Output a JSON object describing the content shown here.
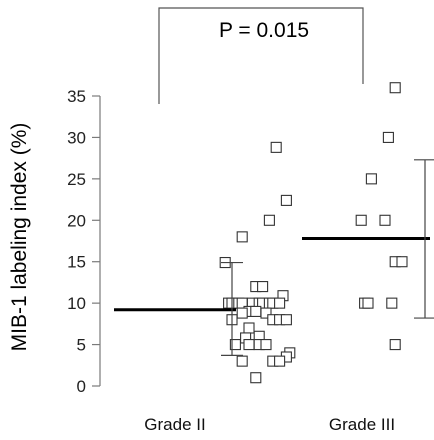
{
  "chart_data": {
    "type": "scatter",
    "title": "",
    "ylabel": "MIB-1 labeling index (%)",
    "xlabel": "",
    "ylim": [
      0,
      35
    ],
    "yticks": [
      0,
      5,
      10,
      15,
      20,
      25,
      30,
      35
    ],
    "categories": [
      "Grade II",
      "Grade III"
    ],
    "grid": false,
    "annotations": [
      {
        "text": "P = 0.015",
        "type": "bracket",
        "between": [
          "Grade II",
          "Grade III"
        ]
      }
    ],
    "series": [
      {
        "category": "Grade II",
        "mean": 9.2,
        "error_low": 3.7,
        "error_high": 14.9,
        "points": [
          {
            "jitter": 0.53,
            "y": 28.8
          },
          {
            "jitter": 0.56,
            "y": 22.4
          },
          {
            "jitter": 0.51,
            "y": 20.0
          },
          {
            "jitter": 0.43,
            "y": 18.0
          },
          {
            "jitter": 0.38,
            "y": 14.9
          },
          {
            "jitter": 0.47,
            "y": 12.0
          },
          {
            "jitter": 0.49,
            "y": 12.0
          },
          {
            "jitter": 0.55,
            "y": 10.9
          },
          {
            "jitter": 0.39,
            "y": 10.0
          },
          {
            "jitter": 0.4,
            "y": 10.0
          },
          {
            "jitter": 0.42,
            "y": 10.0
          },
          {
            "jitter": 0.43,
            "y": 10.0
          },
          {
            "jitter": 0.46,
            "y": 10.0
          },
          {
            "jitter": 0.48,
            "y": 10.0
          },
          {
            "jitter": 0.49,
            "y": 10.0
          },
          {
            "jitter": 0.51,
            "y": 10.0
          },
          {
            "jitter": 0.52,
            "y": 10.0
          },
          {
            "jitter": 0.54,
            "y": 10.0
          },
          {
            "jitter": 0.45,
            "y": 9.0
          },
          {
            "jitter": 0.47,
            "y": 9.0
          },
          {
            "jitter": 0.43,
            "y": 8.8
          },
          {
            "jitter": 0.5,
            "y": 8.8
          },
          {
            "jitter": 0.4,
            "y": 8.0
          },
          {
            "jitter": 0.52,
            "y": 8.0
          },
          {
            "jitter": 0.54,
            "y": 8.0
          },
          {
            "jitter": 0.56,
            "y": 8.0
          },
          {
            "jitter": 0.45,
            "y": 7.0
          },
          {
            "jitter": 0.48,
            "y": 6.0
          },
          {
            "jitter": 0.44,
            "y": 5.8
          },
          {
            "jitter": 0.41,
            "y": 5.0
          },
          {
            "jitter": 0.45,
            "y": 5.0
          },
          {
            "jitter": 0.48,
            "y": 5.0
          },
          {
            "jitter": 0.5,
            "y": 5.0
          },
          {
            "jitter": 0.57,
            "y": 4.0
          },
          {
            "jitter": 0.56,
            "y": 3.5
          },
          {
            "jitter": 0.43,
            "y": 3.0
          },
          {
            "jitter": 0.52,
            "y": 3.0
          },
          {
            "jitter": 0.54,
            "y": 3.0
          },
          {
            "jitter": 0.47,
            "y": 1.0
          }
        ]
      },
      {
        "category": "Grade III",
        "mean": 17.8,
        "error_low": 8.2,
        "error_high": 27.3,
        "points": [
          {
            "jitter": 0.88,
            "y": 36.0
          },
          {
            "jitter": 0.86,
            "y": 30.0
          },
          {
            "jitter": 0.81,
            "y": 25.0
          },
          {
            "jitter": 0.78,
            "y": 20.0
          },
          {
            "jitter": 0.85,
            "y": 20.0
          },
          {
            "jitter": 0.88,
            "y": 15.0
          },
          {
            "jitter": 0.9,
            "y": 15.0
          },
          {
            "jitter": 0.79,
            "y": 10.0
          },
          {
            "jitter": 0.8,
            "y": 10.0
          },
          {
            "jitter": 0.87,
            "y": 10.0
          },
          {
            "jitter": 0.88,
            "y": 5.0
          }
        ]
      }
    ]
  }
}
